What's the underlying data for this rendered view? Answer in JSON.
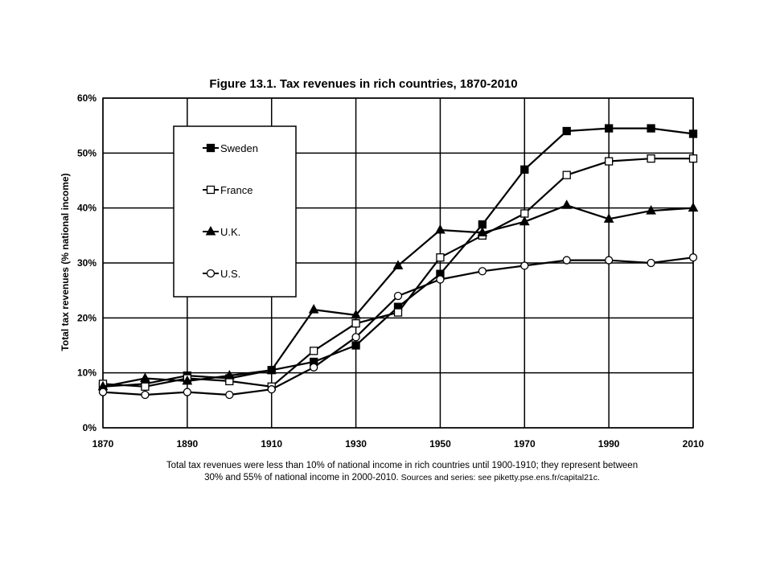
{
  "chart_data": {
    "type": "line",
    "title": "Figure 13.1. Tax revenues in rich countries, 1870-2010",
    "xlabel": "",
    "ylabel": "Total tax revenues (% national income)",
    "x": [
      1870,
      1880,
      1890,
      1900,
      1910,
      1920,
      1930,
      1940,
      1950,
      1960,
      1970,
      1980,
      1990,
      2000,
      2010
    ],
    "x_ticks": [
      1870,
      1890,
      1910,
      1930,
      1950,
      1970,
      1990,
      2010
    ],
    "x_tick_labels": [
      "1870",
      "1890",
      "1910",
      "1930",
      "1950",
      "1970",
      "1990",
      "2010"
    ],
    "xlim": [
      1870,
      2010
    ],
    "y_ticks": [
      0,
      10,
      20,
      30,
      40,
      50,
      60
    ],
    "y_tick_labels": [
      "0%",
      "10%",
      "20%",
      "30%",
      "40%",
      "50%",
      "60%"
    ],
    "ylim": [
      0,
      60
    ],
    "grid": true,
    "legend_position": "top-left",
    "series": [
      {
        "name": "Sweden",
        "marker": "filled-square",
        "values": [
          7.5,
          8.0,
          9.5,
          9.0,
          10.5,
          12.0,
          15.0,
          22.0,
          28.0,
          37.0,
          47.0,
          54.0,
          54.5,
          54.5,
          53.5
        ]
      },
      {
        "name": "France",
        "marker": "open-square",
        "values": [
          8.0,
          7.5,
          9.0,
          8.5,
          7.5,
          14.0,
          19.0,
          21.0,
          31.0,
          35.0,
          39.0,
          46.0,
          48.5,
          49.0,
          49.0
        ]
      },
      {
        "name": "U.K.",
        "marker": "filled-triangle",
        "values": [
          7.5,
          9.0,
          8.5,
          9.5,
          10.5,
          21.5,
          20.5,
          29.5,
          36.0,
          35.5,
          37.5,
          40.5,
          38.0,
          39.5,
          40.0
        ]
      },
      {
        "name": "U.S.",
        "marker": "open-circle",
        "values": [
          6.5,
          6.0,
          6.5,
          6.0,
          7.0,
          11.0,
          16.5,
          24.0,
          27.0,
          28.5,
          29.5,
          30.5,
          30.5,
          30.0,
          31.0
        ]
      }
    ]
  },
  "caption": {
    "line1": "Total tax revenues were less than 10% of national income in rich countries until 1900-1910; they represent between",
    "line2_main": "30% and 55% of national income in 2000-2010.",
    "line2_source": " Sources and series: see piketty.pse.ens.fr/capital21c."
  }
}
